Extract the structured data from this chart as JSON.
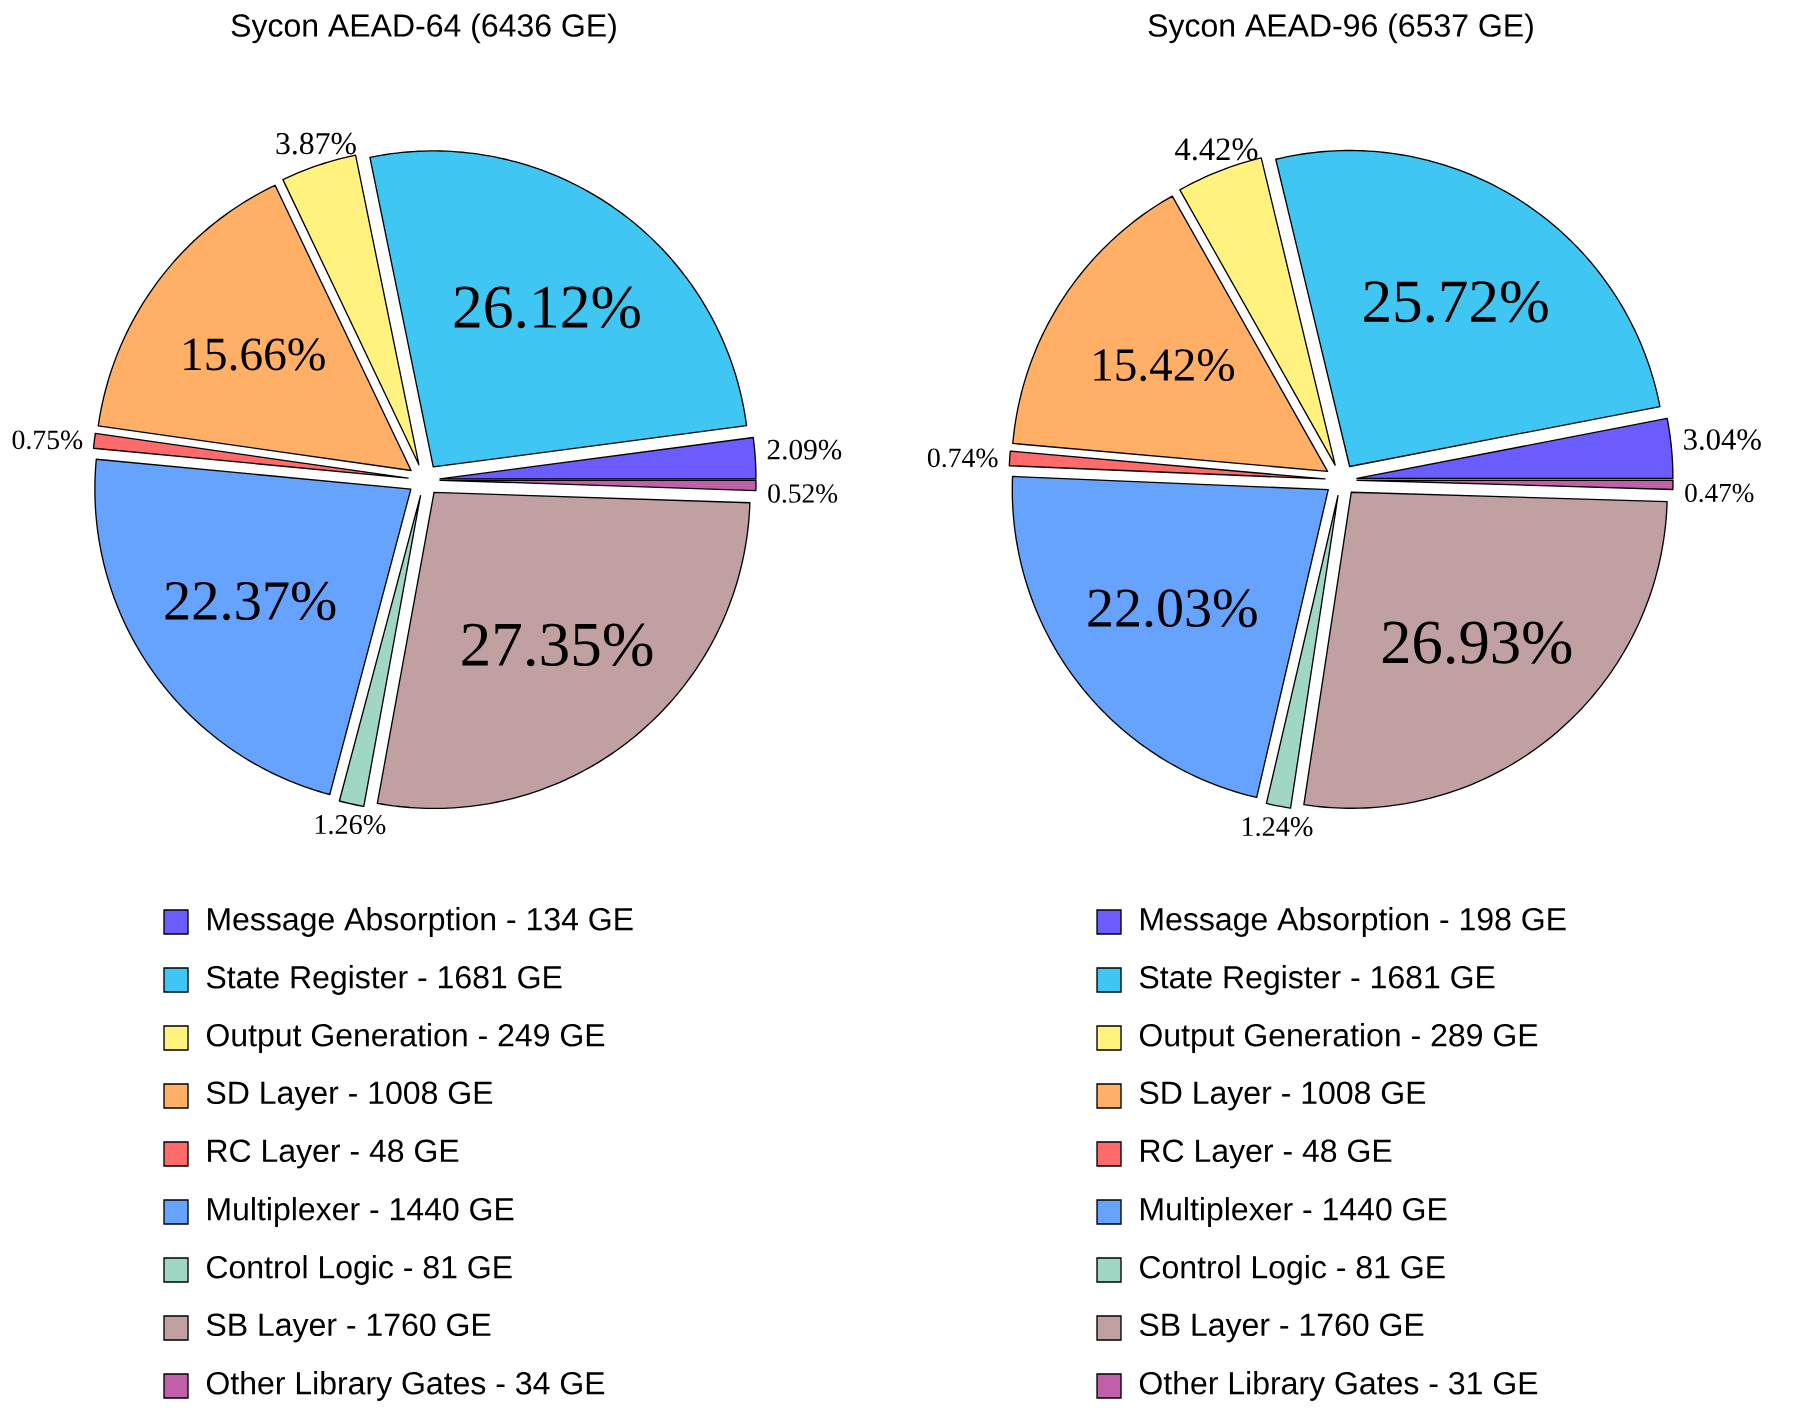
{
  "chart_data": [
    {
      "type": "pie",
      "title": "Sycon AEAD-64 (6436 GE)",
      "categories": [
        "Message Absorption - 134 GE",
        "State Register - 1681 GE",
        "Output Generation - 249 GE",
        "SD Layer - 1008 GE",
        "RC Layer - 48 GE",
        "Multiplexer - 1440 GE",
        "Control Logic - 81 GE",
        "SB Layer - 1760 GE",
        "Other Library Gates - 34 GE"
      ],
      "values": [
        2.09,
        26.12,
        3.87,
        15.66,
        0.75,
        22.37,
        1.26,
        27.35,
        0.52
      ],
      "value_labels": [
        "2.09%",
        "26.12%",
        "3.87%",
        "15.66%",
        "0.75%",
        "22.37%",
        "1.26%",
        "27.35%",
        "0.52%"
      ],
      "colors": [
        "#6a5cff",
        "#3fc6f2",
        "#fff27f",
        "#ffb066",
        "#ff6b6b",
        "#66a3ff",
        "#9fd6c4",
        "#c0a0a0",
        "#c060a8"
      ],
      "legend": "bottom"
    },
    {
      "type": "pie",
      "title": "Sycon AEAD-96 (6537 GE)",
      "categories": [
        "Message Absorption - 198 GE",
        "State Register - 1681 GE",
        "Output Generation - 289 GE",
        "SD Layer - 1008 GE",
        "RC Layer - 48 GE",
        "Multiplexer - 1440 GE",
        "Control Logic - 81 GE",
        "SB Layer - 1760 GE",
        "Other Library Gates - 31 GE"
      ],
      "values": [
        3.04,
        25.72,
        4.42,
        15.42,
        0.74,
        22.03,
        1.24,
        26.93,
        0.47
      ],
      "value_labels": [
        "3.04%",
        "25.72%",
        "4.42%",
        "15.42%",
        "0.74%",
        "22.03%",
        "1.24%",
        "26.93%",
        "0.47%"
      ],
      "colors": [
        "#6a5cff",
        "#3fc6f2",
        "#fff27f",
        "#ffb066",
        "#ff6b6b",
        "#66a3ff",
        "#9fd6c4",
        "#c0a0a0",
        "#c060a8"
      ],
      "legend": "bottom"
    }
  ]
}
